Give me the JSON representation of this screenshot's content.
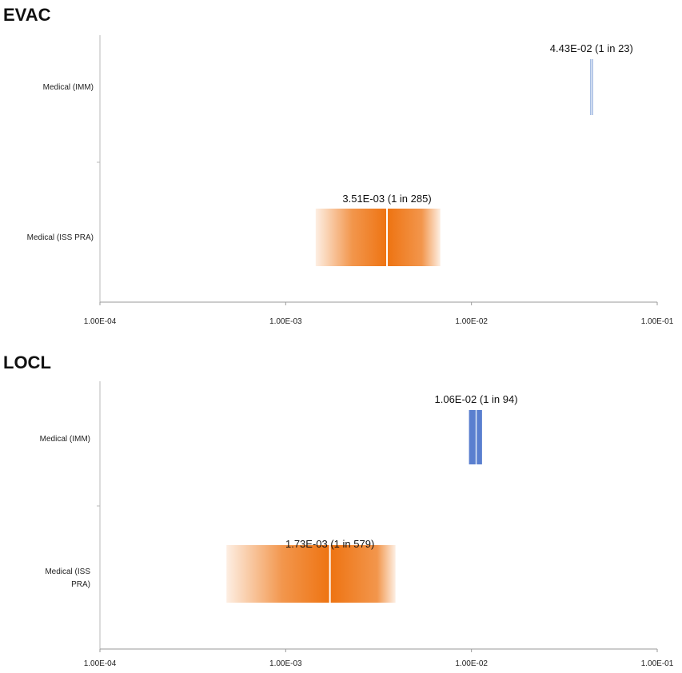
{
  "chart_data": [
    {
      "type": "range-bar",
      "title": "EVAC",
      "xscale": "log",
      "xlim": [
        0.0001,
        0.1
      ],
      "xticks": [
        "1.00E-04",
        "1.00E-03",
        "1.00E-02",
        "1.00E-01"
      ],
      "xtick_values": [
        0.0001,
        0.001,
        0.01,
        0.1
      ],
      "categories": [
        "Medical (IMM)",
        "Medical (ISS PRA)"
      ],
      "series": [
        {
          "category": "Medical (IMM)",
          "value": 0.0443,
          "low": 0.0435,
          "high": 0.0452,
          "label": "4.43E-02 (1 in 23)",
          "color": "#9db7e0",
          "style": "thin"
        },
        {
          "category": "Medical (ISS PRA)",
          "value": 0.00351,
          "low": 0.00145,
          "high": 0.0068,
          "label": "3.51E-03 (1 in 285)",
          "color": "#ee7311",
          "style": "gradient"
        }
      ]
    },
    {
      "type": "range-bar",
      "title": "LOCL",
      "xscale": "log",
      "xlim": [
        0.0001,
        0.1
      ],
      "xticks": [
        "1.00E-04",
        "1.00E-03",
        "1.00E-02",
        "1.00E-01"
      ],
      "xtick_values": [
        0.0001,
        0.001,
        0.01,
        0.1
      ],
      "categories": [
        "Medical (IMM)",
        "Medical (ISS PRA)"
      ],
      "category_lines": [
        [
          "Medical (IMM)"
        ],
        [
          "Medical (ISS",
          "PRA)"
        ]
      ],
      "series": [
        {
          "category": "Medical (IMM)",
          "value": 0.0106,
          "low": 0.0097,
          "high": 0.0114,
          "label": "1.06E-02 (1 in 94)",
          "color": "#5a7fcf",
          "style": "double"
        },
        {
          "category": "Medical (ISS PRA)",
          "value": 0.00173,
          "low": 0.00048,
          "high": 0.0039,
          "label": "1.73E-03 (1 in 579)",
          "color": "#ee7311",
          "style": "gradient"
        }
      ]
    }
  ]
}
